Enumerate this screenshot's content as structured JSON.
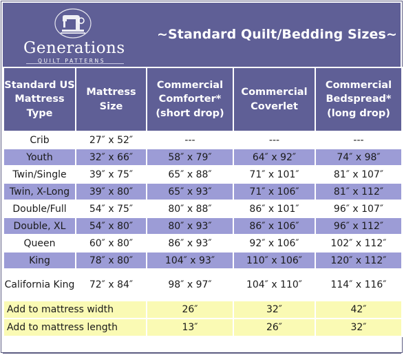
{
  "brand": {
    "name": "Generations",
    "tagline": "QUILT PATTERNS"
  },
  "title": "~Standard Quilt/Bedding Sizes~",
  "colors": {
    "header_bg": "#5f5f96",
    "alt_row": "#9c9cd6",
    "add_row": "#fafab4"
  },
  "table": {
    "headers": [
      "Standard US Mattress Type",
      "Mattress Size",
      "Commercial Comforter* (short drop)",
      "Commercial Coverlet",
      "Commercial Bedspread* (long drop)"
    ],
    "rows": [
      [
        "Crib",
        "27″ x 52″",
        "---",
        "---",
        "---"
      ],
      [
        "Youth",
        "32″ x 66″",
        "58″ x 79″",
        "64″ x 92″",
        "74″ x 98″"
      ],
      [
        "Twin/Single",
        "39″ x 75″",
        "65″ x 88″",
        "71″ x 101″",
        "81″ x 107″"
      ],
      [
        "Twin, X-Long",
        "39″ x 80″",
        "65″ x 93″",
        "71″ x 106″",
        "81″ x 112″"
      ],
      [
        "Double/Full",
        "54″ x 75″",
        "80″ x 88″",
        "86″ x 101″",
        "96″ x 107″"
      ],
      [
        "Double, XL",
        "54″ x 80″",
        "80″ x 93″",
        "86″ x 106″",
        "96″ x 112″"
      ],
      [
        "Queen",
        "60″ x 80″",
        "86″ x 93″",
        "92″ x 106″",
        "102″ x 112″"
      ],
      [
        "King",
        "78″ x 80″",
        "104″ x 93″",
        "110″ x 106″",
        "120″ x 112″"
      ],
      [
        "California King",
        "72″ x 84″",
        "98″ x 97″",
        "104″ x 110″",
        "114″ x 116″"
      ]
    ],
    "add_rows": [
      [
        "Add to mattress width",
        "26″",
        "32″",
        "42″"
      ],
      [
        "Add to mattress length",
        "13″",
        "26″",
        "32″"
      ]
    ]
  }
}
